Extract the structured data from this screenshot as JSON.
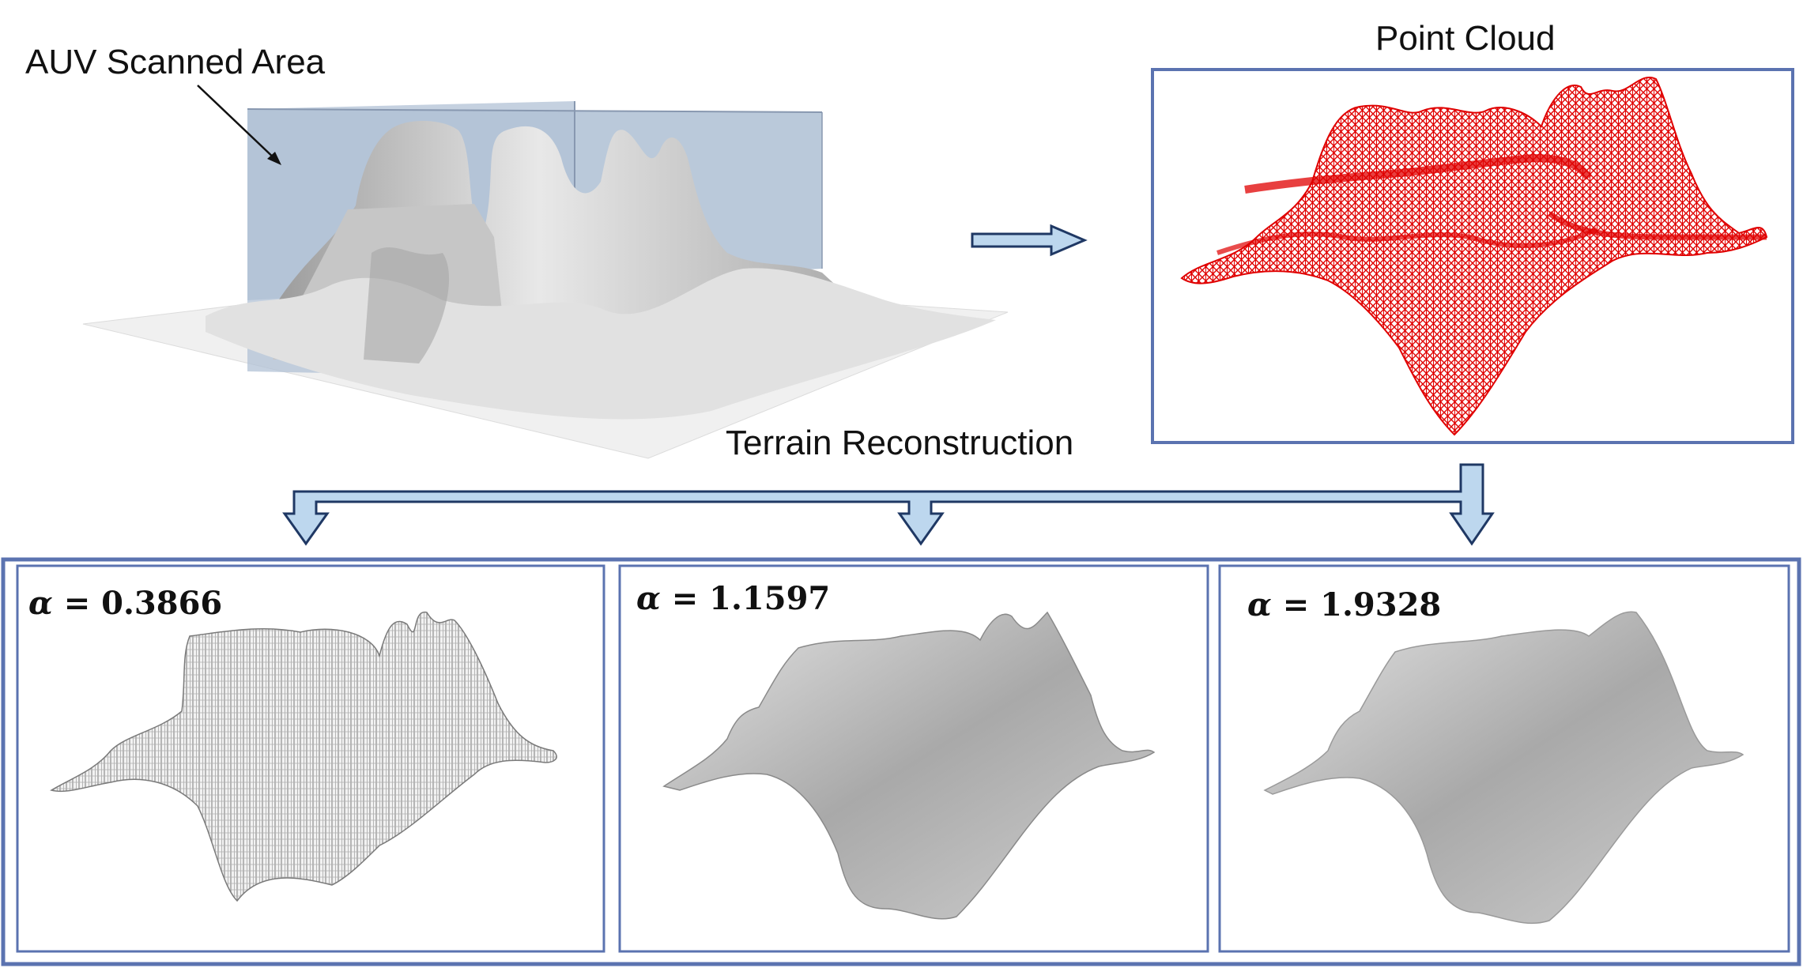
{
  "labels": {
    "scanned_area": "AUV Scanned Area",
    "point_cloud": "Point Cloud",
    "terrain_reconstruction": "Terrain Reconstruction"
  },
  "reconstructions": [
    {
      "symbol": "α",
      "equals": " = ",
      "value": "0.3866"
    },
    {
      "symbol": "α",
      "equals": " = ",
      "value": "1.1597"
    },
    {
      "symbol": "α",
      "equals": " = ",
      "value": "1.9328"
    }
  ],
  "colors": {
    "frame": "#5b73b0",
    "arrow_fill": "#bdd7ee",
    "arrow_stroke": "#1f3864",
    "point_cloud": "#e00000",
    "scan_box": "#a9b9cf",
    "terrain": "#c4c4c4"
  }
}
